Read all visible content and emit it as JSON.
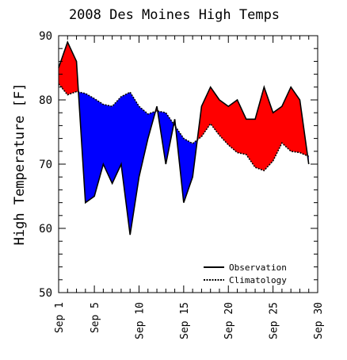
{
  "chart_data": {
    "type": "area",
    "title": "2008 Des Moines High Temps",
    "ylabel": "High Temperature [F]",
    "xlabel": "",
    "ylim": [
      50,
      90
    ],
    "yticks": [
      50,
      60,
      70,
      80,
      90
    ],
    "xlim": [
      1,
      30
    ],
    "xticks": [
      {
        "day": 1,
        "label": "Sep 1"
      },
      {
        "day": 5,
        "label": "Sep 5"
      },
      {
        "day": 10,
        "label": "Sep 10"
      },
      {
        "day": 15,
        "label": "Sep 15"
      },
      {
        "day": 20,
        "label": "Sep 20"
      },
      {
        "day": 25,
        "label": "Sep 25"
      },
      {
        "day": 30,
        "label": "Sep 30"
      }
    ],
    "fill_colors": {
      "above": "#ff0000",
      "below": "#0000ff"
    },
    "legend_position": "bottom-right",
    "series": [
      {
        "name": "Observation",
        "style": "solid",
        "x": [
          1,
          2,
          3,
          4,
          5,
          6,
          7,
          8,
          9,
          10,
          11,
          12,
          13,
          14,
          15,
          16,
          17,
          18,
          19,
          20,
          21,
          22,
          23,
          24,
          25,
          26,
          27,
          28,
          29
        ],
        "y": [
          85,
          89,
          86,
          64,
          65,
          70,
          67,
          70,
          59,
          68,
          74,
          79,
          70,
          77,
          64,
          68,
          79,
          82,
          80,
          79,
          80,
          77,
          77,
          82,
          78,
          79,
          82,
          80,
          70
        ]
      },
      {
        "name": "Climatology",
        "style": "dashed",
        "x": [
          1,
          2,
          3,
          4,
          5,
          6,
          7,
          8,
          9,
          10,
          11,
          12,
          13,
          14,
          15,
          16,
          17,
          18,
          19,
          20,
          21,
          22,
          23,
          24,
          25,
          26,
          27,
          28,
          29
        ],
        "y": [
          82.5,
          80.8,
          81.3,
          81,
          80.2,
          79.3,
          79,
          80.5,
          81.2,
          79,
          77.8,
          78.3,
          78,
          76,
          74,
          73.2,
          74.3,
          76.3,
          74.5,
          73,
          71.8,
          71.5,
          69.5,
          69,
          70.5,
          73.3,
          72,
          71.8,
          71.2
        ]
      }
    ]
  }
}
